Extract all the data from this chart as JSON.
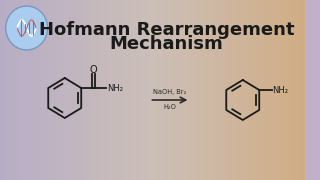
{
  "title_line1": "Hofmann Rearrangement",
  "title_line2": "Mechanism",
  "title_color": "#1a1a1a",
  "title_fontsize": 13,
  "reagent_text": "NaOH, Br₂",
  "reagent_text2": "H₂O",
  "arrow_color": "#2a2a2a",
  "structure_color": "#1a1a1a",
  "logo_circle_color": "#aaccee",
  "logo_edge_color": "#7799bb"
}
